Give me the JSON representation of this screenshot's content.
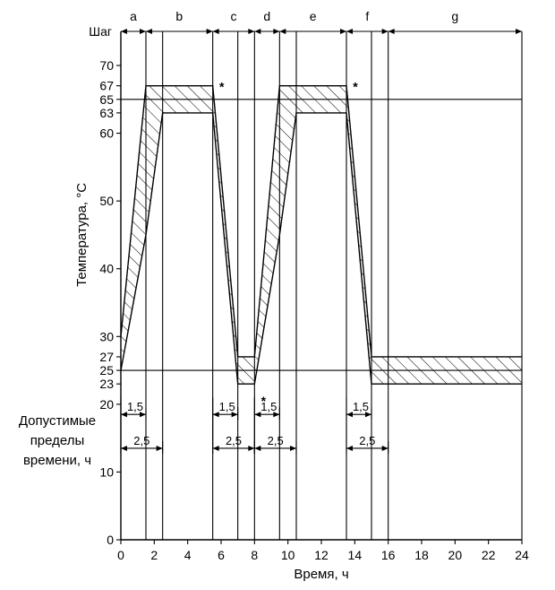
{
  "chart_data": {
    "type": "line",
    "xlabel": "Время, ч",
    "ylabel": "Температура, °C",
    "ylabel2": [
      "Допустимые",
      "пределы",
      "времени, ч"
    ],
    "step_header": "Шаг",
    "xlim": [
      0,
      24
    ],
    "ylim": [
      0,
      70
    ],
    "xticks": [
      0,
      2,
      4,
      6,
      8,
      10,
      12,
      14,
      16,
      18,
      20,
      22,
      24
    ],
    "yticks": [
      0,
      10,
      20,
      23,
      25,
      27,
      30,
      40,
      50,
      60,
      63,
      65,
      67,
      70
    ],
    "steps": [
      {
        "label": "a",
        "from": 0,
        "to": 1.5
      },
      {
        "label": "b",
        "from": 1.5,
        "to": 5.5
      },
      {
        "label": "c",
        "from": 5.5,
        "to": 8
      },
      {
        "label": "d",
        "from": 8,
        "to": 9.5
      },
      {
        "label": "e",
        "from": 9.5,
        "to": 13.5
      },
      {
        "label": "f",
        "from": 13.5,
        "to": 16
      },
      {
        "label": "g",
        "from": 16,
        "to": 24
      }
    ],
    "envelope_upper": [
      {
        "x": 0,
        "y": 30
      },
      {
        "x": 1.5,
        "y": 67
      },
      {
        "x": 5.5,
        "y": 67
      },
      {
        "x": 7,
        "y": 27
      },
      {
        "x": 8,
        "y": 27
      },
      {
        "x": 9.5,
        "y": 67
      },
      {
        "x": 13.5,
        "y": 67
      },
      {
        "x": 15,
        "y": 27
      },
      {
        "x": 24,
        "y": 27
      }
    ],
    "envelope_lower": [
      {
        "x": 0,
        "y": 25
      },
      {
        "x": 1.5,
        "y": 45
      },
      {
        "x": 2.5,
        "y": 63
      },
      {
        "x": 5.5,
        "y": 63
      },
      {
        "x": 7,
        "y": 23
      },
      {
        "x": 8,
        "y": 23
      },
      {
        "x": 9.5,
        "y": 45
      },
      {
        "x": 10.5,
        "y": 63
      },
      {
        "x": 13.5,
        "y": 63
      },
      {
        "x": 15,
        "y": 23
      },
      {
        "x": 24,
        "y": 23
      }
    ],
    "reference_lines_y": [
      25,
      65
    ],
    "vertical_lines_x": [
      1.5,
      2.5,
      5.5,
      7,
      8,
      9.5,
      10.5,
      13.5,
      15,
      16,
      24
    ],
    "asterisks": [
      {
        "x": 5.5,
        "y": 67,
        "text": "*"
      },
      {
        "x": 8,
        "y": 23,
        "text": "*"
      },
      {
        "x": 13.5,
        "y": 67,
        "text": "*"
      }
    ],
    "time_limits": [
      {
        "start": 0,
        "short": 1.5,
        "long": 2.5,
        "short_label": "1,5",
        "long_label": "2,5"
      },
      {
        "start": 5.5,
        "short": 1.5,
        "long": 2.5,
        "short_label": "1,5",
        "long_label": "2,5"
      },
      {
        "start": 8,
        "short": 1.5,
        "long": 2.5,
        "short_label": "1,5",
        "long_label": "2,5"
      },
      {
        "start": 13.5,
        "short": 1.5,
        "long": 2.5,
        "short_label": "1,5",
        "long_label": "2,5"
      }
    ],
    "grid": false
  }
}
